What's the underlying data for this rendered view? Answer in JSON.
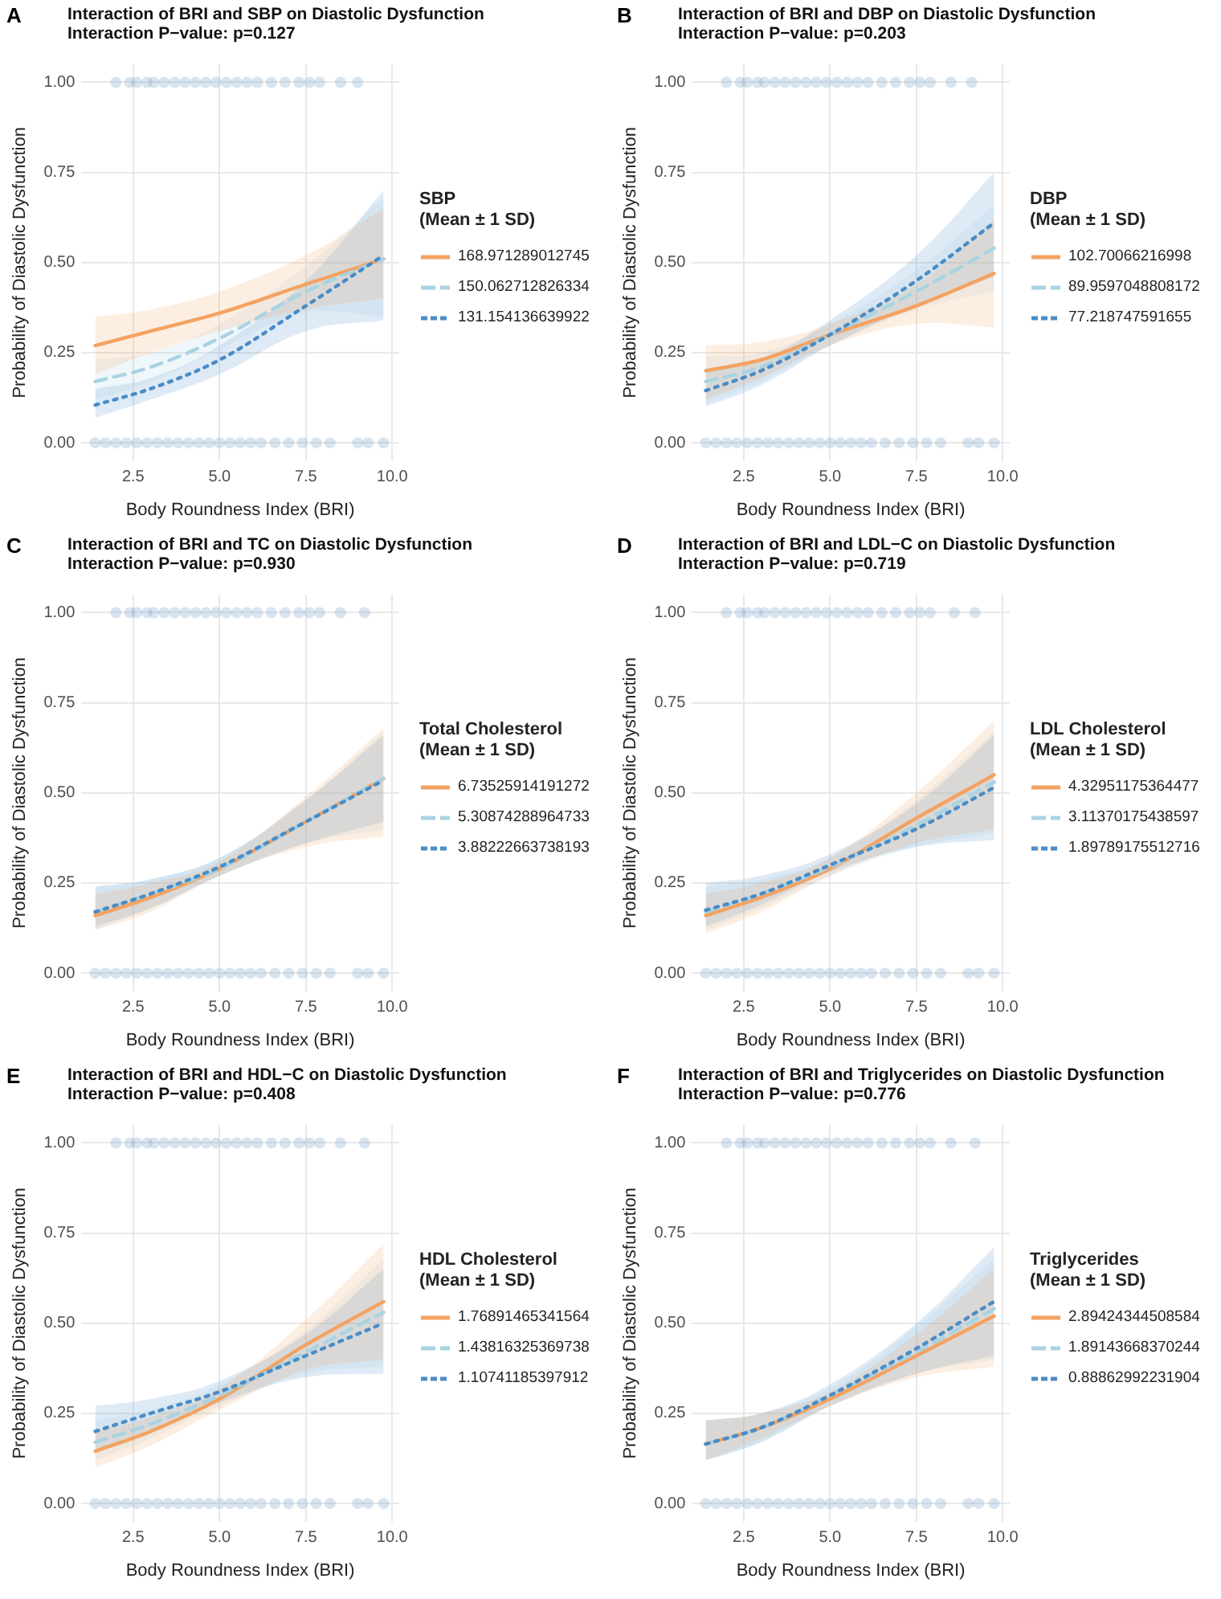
{
  "chart_data": [
    {
      "type": "line",
      "annotations": [
        "A"
      ],
      "title": "Interaction of BRI and SBP on Diastolic Dysfunction",
      "subtitle": "Interaction P−value: p=0.127",
      "xlabel": "Body Roundness Index (BRI)",
      "ylabel": "Probability of Diastolic Dysfunction",
      "legend_title": "SBP\n(Mean ± 1 SD)",
      "legend": "right",
      "grid": true,
      "xlim": [
        1.0,
        10.2
      ],
      "ylim": [
        -0.05,
        1.05
      ],
      "xticks": [
        {
          "value": 2.5,
          "label": "2.5"
        },
        {
          "value": 5,
          "label": "5.0"
        },
        {
          "value": 7.5,
          "label": "7.5"
        },
        {
          "value": 10,
          "label": "10.0"
        }
      ],
      "yticks": [
        {
          "value": 0,
          "label": "0.00"
        },
        {
          "value": 0.25,
          "label": "0.25"
        },
        {
          "value": 0.5,
          "label": "0.50"
        },
        {
          "value": 0.75,
          "label": "0.75"
        },
        {
          "value": 1,
          "label": "1.00"
        }
      ],
      "x": [
        1.4,
        3,
        5,
        7.5,
        9.75
      ],
      "series": [
        {
          "type": "scatter",
          "marker": "circle",
          "color": "#8fb3d1",
          "x": [
            2.0,
            2.4,
            2.6,
            2.9,
            3.1,
            3.4,
            3.7,
            4.0,
            4.3,
            4.6,
            4.9,
            5.2,
            5.5,
            5.8,
            6.1,
            6.5,
            6.9,
            7.3,
            7.6,
            7.9,
            8.5,
            9.0,
            1.4,
            1.7,
            2.0,
            2.3,
            2.6,
            2.9,
            3.2,
            3.5,
            3.8,
            4.1,
            4.4,
            4.7,
            5.0,
            5.3,
            5.6,
            5.9,
            6.2,
            6.6,
            7.0,
            7.4,
            7.8,
            8.2,
            9.0,
            9.3,
            9.75
          ],
          "values": [
            1,
            1,
            1,
            1,
            1,
            1,
            1,
            1,
            1,
            1,
            1,
            1,
            1,
            1,
            1,
            1,
            1,
            1,
            1,
            1,
            1,
            1,
            0,
            0,
            0,
            0,
            0,
            0,
            0,
            0,
            0,
            0,
            0,
            0,
            0,
            0,
            0,
            0,
            0,
            0,
            0,
            0,
            0,
            0,
            0,
            0,
            0
          ]
        },
        {
          "name": "168.971289012745",
          "color": "#f4a261",
          "line_style": "solid",
          "values": [
            0.27,
            0.31,
            0.36,
            0.44,
            0.51
          ],
          "lower": [
            0.19,
            0.25,
            0.31,
            0.37,
            0.4
          ],
          "upper": [
            0.35,
            0.37,
            0.42,
            0.52,
            0.65
          ]
        },
        {
          "name": "150.062712826334",
          "color": "#a8d3e3",
          "line_style": "dashed",
          "values": [
            0.17,
            0.21,
            0.29,
            0.42,
            0.51
          ],
          "lower": [
            0.12,
            0.17,
            0.26,
            0.36,
            0.35
          ],
          "upper": [
            0.23,
            0.25,
            0.33,
            0.49,
            0.68
          ]
        },
        {
          "name": "131.154136639922",
          "color": "#4a8cc6",
          "line_style": "dotted",
          "values": [
            0.105,
            0.15,
            0.23,
            0.38,
            0.52
          ],
          "lower": [
            0.07,
            0.12,
            0.19,
            0.31,
            0.34
          ],
          "upper": [
            0.15,
            0.18,
            0.27,
            0.45,
            0.7
          ]
        }
      ]
    },
    {
      "type": "line",
      "annotations": [
        "B"
      ],
      "title": "Interaction of BRI and DBP on Diastolic Dysfunction",
      "subtitle": "Interaction P−value: p=0.203",
      "xlabel": "Body Roundness Index (BRI)",
      "ylabel": "Probability of Diastolic Dysfunction",
      "legend_title": "DBP\n(Mean ± 1 SD)",
      "legend": "right",
      "grid": true,
      "xlim": [
        1.0,
        10.2
      ],
      "ylim": [
        -0.05,
        1.05
      ],
      "xticks": [
        {
          "value": 2.5,
          "label": "2.5"
        },
        {
          "value": 5,
          "label": "5.0"
        },
        {
          "value": 7.5,
          "label": "7.5"
        },
        {
          "value": 10,
          "label": "10.0"
        }
      ],
      "yticks": [
        {
          "value": 0,
          "label": "0.00"
        },
        {
          "value": 0.25,
          "label": "0.25"
        },
        {
          "value": 0.5,
          "label": "0.50"
        },
        {
          "value": 0.75,
          "label": "0.75"
        },
        {
          "value": 1,
          "label": "1.00"
        }
      ],
      "x": [
        1.4,
        3,
        5,
        7.5,
        9.75
      ],
      "series": [
        {
          "type": "scatter",
          "marker": "circle",
          "color": "#8fb3d1",
          "x": [
            2.0,
            2.4,
            2.6,
            2.9,
            3.1,
            3.4,
            3.7,
            4.0,
            4.3,
            4.6,
            4.9,
            5.2,
            5.5,
            5.8,
            6.1,
            6.5,
            6.9,
            7.3,
            7.6,
            7.9,
            8.5,
            9.1,
            1.4,
            1.7,
            2.0,
            2.3,
            2.6,
            2.9,
            3.2,
            3.5,
            3.8,
            4.1,
            4.4,
            4.7,
            5.0,
            5.3,
            5.6,
            5.9,
            6.2,
            6.6,
            7.0,
            7.4,
            7.8,
            8.2,
            9.0,
            9.3,
            9.75
          ],
          "values": [
            1,
            1,
            1,
            1,
            1,
            1,
            1,
            1,
            1,
            1,
            1,
            1,
            1,
            1,
            1,
            1,
            1,
            1,
            1,
            1,
            1,
            1,
            0,
            0,
            0,
            0,
            0,
            0,
            0,
            0,
            0,
            0,
            0,
            0,
            0,
            0,
            0,
            0,
            0,
            0,
            0,
            0,
            0,
            0,
            0,
            0,
            0
          ]
        },
        {
          "name": "102.70066216998",
          "color": "#f4a261",
          "line_style": "solid",
          "values": [
            0.2,
            0.23,
            0.3,
            0.38,
            0.47
          ],
          "lower": [
            0.12,
            0.18,
            0.27,
            0.33,
            0.32
          ],
          "upper": [
            0.27,
            0.28,
            0.33,
            0.44,
            0.62
          ]
        },
        {
          "name": "89.9597048808172",
          "color": "#a8d3e3",
          "line_style": "dashed",
          "values": [
            0.17,
            0.21,
            0.3,
            0.42,
            0.54
          ],
          "lower": [
            0.11,
            0.17,
            0.27,
            0.37,
            0.42
          ],
          "upper": [
            0.24,
            0.25,
            0.33,
            0.48,
            0.66
          ]
        },
        {
          "name": "77.218747591655",
          "color": "#4a8cc6",
          "line_style": "dotted",
          "values": [
            0.145,
            0.2,
            0.3,
            0.45,
            0.61
          ],
          "lower": [
            0.1,
            0.16,
            0.27,
            0.38,
            0.46
          ],
          "upper": [
            0.2,
            0.23,
            0.34,
            0.52,
            0.75
          ]
        }
      ]
    },
    {
      "type": "line",
      "annotations": [
        "C"
      ],
      "title": "Interaction of BRI and TC on Diastolic Dysfunction",
      "subtitle": "Interaction P−value: p=0.930",
      "xlabel": "Body Roundness Index (BRI)",
      "ylabel": "Probability of Diastolic Dysfunction",
      "legend_title": "Total Cholesterol\n(Mean ± 1 SD)",
      "legend": "right",
      "grid": true,
      "xlim": [
        1.0,
        10.2
      ],
      "ylim": [
        -0.05,
        1.05
      ],
      "xticks": [
        {
          "value": 2.5,
          "label": "2.5"
        },
        {
          "value": 5,
          "label": "5.0"
        },
        {
          "value": 7.5,
          "label": "7.5"
        },
        {
          "value": 10,
          "label": "10.0"
        }
      ],
      "yticks": [
        {
          "value": 0,
          "label": "0.00"
        },
        {
          "value": 0.25,
          "label": "0.25"
        },
        {
          "value": 0.5,
          "label": "0.50"
        },
        {
          "value": 0.75,
          "label": "0.75"
        },
        {
          "value": 1,
          "label": "1.00"
        }
      ],
      "x": [
        1.4,
        3,
        5,
        7.5,
        9.75
      ],
      "series": [
        {
          "type": "scatter",
          "marker": "circle",
          "color": "#8fb3d1",
          "x": [
            2.0,
            2.4,
            2.6,
            2.9,
            3.1,
            3.4,
            3.7,
            4.0,
            4.3,
            4.6,
            4.9,
            5.2,
            5.5,
            5.8,
            6.1,
            6.5,
            6.9,
            7.3,
            7.6,
            7.9,
            8.5,
            9.2,
            1.4,
            1.7,
            2.0,
            2.3,
            2.6,
            2.9,
            3.2,
            3.5,
            3.8,
            4.1,
            4.4,
            4.7,
            5.0,
            5.3,
            5.6,
            5.9,
            6.2,
            6.6,
            7.0,
            7.4,
            7.8,
            8.2,
            9.0,
            9.3,
            9.75
          ],
          "values": [
            1,
            1,
            1,
            1,
            1,
            1,
            1,
            1,
            1,
            1,
            1,
            1,
            1,
            1,
            1,
            1,
            1,
            1,
            1,
            1,
            1,
            1,
            0,
            0,
            0,
            0,
            0,
            0,
            0,
            0,
            0,
            0,
            0,
            0,
            0,
            0,
            0,
            0,
            0,
            0,
            0,
            0,
            0,
            0,
            0,
            0,
            0
          ]
        },
        {
          "name": "6.73525914191272",
          "color": "#f4a261",
          "line_style": "solid",
          "values": [
            0.16,
            0.21,
            0.29,
            0.42,
            0.54
          ],
          "lower": [
            0.12,
            0.17,
            0.27,
            0.35,
            0.38
          ],
          "upper": [
            0.22,
            0.25,
            0.31,
            0.49,
            0.68
          ]
        },
        {
          "name": "5.30874288964733",
          "color": "#a8d3e3",
          "line_style": "dashed",
          "values": [
            0.17,
            0.22,
            0.29,
            0.42,
            0.54
          ],
          "lower": [
            0.12,
            0.18,
            0.27,
            0.36,
            0.4
          ],
          "upper": [
            0.24,
            0.26,
            0.32,
            0.48,
            0.67
          ]
        },
        {
          "name": "3.88222663738193",
          "color": "#4a8cc6",
          "line_style": "dotted",
          "values": [
            0.17,
            0.22,
            0.295,
            0.42,
            0.535
          ],
          "lower": [
            0.13,
            0.18,
            0.27,
            0.36,
            0.42
          ],
          "upper": [
            0.24,
            0.26,
            0.32,
            0.48,
            0.66
          ]
        }
      ]
    },
    {
      "type": "line",
      "annotations": [
        "D"
      ],
      "title": "Interaction of BRI and LDL−C on Diastolic Dysfunction",
      "subtitle": "Interaction P−value: p=0.719",
      "xlabel": "Body Roundness Index (BRI)",
      "ylabel": "Probability of Diastolic Dysfunction",
      "legend_title": "LDL Cholesterol\n(Mean ± 1 SD)",
      "legend": "right",
      "grid": true,
      "xlim": [
        1.0,
        10.2
      ],
      "ylim": [
        -0.05,
        1.05
      ],
      "xticks": [
        {
          "value": 2.5,
          "label": "2.5"
        },
        {
          "value": 5,
          "label": "5.0"
        },
        {
          "value": 7.5,
          "label": "7.5"
        },
        {
          "value": 10,
          "label": "10.0"
        }
      ],
      "yticks": [
        {
          "value": 0,
          "label": "0.00"
        },
        {
          "value": 0.25,
          "label": "0.25"
        },
        {
          "value": 0.5,
          "label": "0.50"
        },
        {
          "value": 0.75,
          "label": "0.75"
        },
        {
          "value": 1,
          "label": "1.00"
        }
      ],
      "x": [
        1.4,
        3,
        5,
        7.5,
        9.75
      ],
      "series": [
        {
          "type": "scatter",
          "marker": "circle",
          "color": "#8fb3d1",
          "x": [
            2.0,
            2.4,
            2.6,
            2.9,
            3.1,
            3.4,
            3.7,
            4.0,
            4.3,
            4.6,
            4.9,
            5.2,
            5.5,
            5.8,
            6.1,
            6.5,
            6.9,
            7.3,
            7.6,
            7.9,
            8.6,
            9.2,
            1.4,
            1.7,
            2.0,
            2.3,
            2.6,
            2.9,
            3.2,
            3.5,
            3.8,
            4.1,
            4.4,
            4.7,
            5.0,
            5.3,
            5.6,
            5.9,
            6.2,
            6.6,
            7.0,
            7.4,
            7.8,
            8.2,
            9.0,
            9.3,
            9.75
          ],
          "values": [
            1,
            1,
            1,
            1,
            1,
            1,
            1,
            1,
            1,
            1,
            1,
            1,
            1,
            1,
            1,
            1,
            1,
            1,
            1,
            1,
            1,
            1,
            0,
            0,
            0,
            0,
            0,
            0,
            0,
            0,
            0,
            0,
            0,
            0,
            0,
            0,
            0,
            0,
            0,
            0,
            0,
            0,
            0,
            0,
            0,
            0,
            0
          ]
        },
        {
          "name": "4.32951175364477",
          "color": "#f4a261",
          "line_style": "solid",
          "values": [
            0.16,
            0.21,
            0.29,
            0.43,
            0.55
          ],
          "lower": [
            0.11,
            0.17,
            0.27,
            0.36,
            0.4
          ],
          "upper": [
            0.22,
            0.25,
            0.32,
            0.5,
            0.7
          ]
        },
        {
          "name": "3.11370175438597",
          "color": "#a8d3e3",
          "line_style": "dashed",
          "values": [
            0.17,
            0.22,
            0.295,
            0.41,
            0.53
          ],
          "lower": [
            0.12,
            0.18,
            0.27,
            0.35,
            0.39
          ],
          "upper": [
            0.24,
            0.26,
            0.32,
            0.48,
            0.67
          ]
        },
        {
          "name": "1.89789175512716",
          "color": "#4a8cc6",
          "line_style": "dotted",
          "values": [
            0.175,
            0.22,
            0.3,
            0.4,
            0.515
          ],
          "lower": [
            0.13,
            0.19,
            0.28,
            0.35,
            0.37
          ],
          "upper": [
            0.25,
            0.27,
            0.33,
            0.47,
            0.66
          ]
        }
      ]
    },
    {
      "type": "line",
      "annotations": [
        "E"
      ],
      "title": "Interaction of BRI and HDL−C on Diastolic Dysfunction",
      "subtitle": "Interaction P−value: p=0.408",
      "xlabel": "Body Roundness Index (BRI)",
      "ylabel": "Probability of Diastolic Dysfunction",
      "legend_title": "HDL Cholesterol\n(Mean ± 1 SD)",
      "legend": "right",
      "grid": true,
      "xlim": [
        1.0,
        10.2
      ],
      "ylim": [
        -0.05,
        1.05
      ],
      "xticks": [
        {
          "value": 2.5,
          "label": "2.5"
        },
        {
          "value": 5,
          "label": "5.0"
        },
        {
          "value": 7.5,
          "label": "7.5"
        },
        {
          "value": 10,
          "label": "10.0"
        }
      ],
      "yticks": [
        {
          "value": 0,
          "label": "0.00"
        },
        {
          "value": 0.25,
          "label": "0.25"
        },
        {
          "value": 0.5,
          "label": "0.50"
        },
        {
          "value": 0.75,
          "label": "0.75"
        },
        {
          "value": 1,
          "label": "1.00"
        }
      ],
      "x": [
        1.4,
        3,
        5,
        7.5,
        9.75
      ],
      "series": [
        {
          "type": "scatter",
          "marker": "circle",
          "color": "#8fb3d1",
          "x": [
            2.0,
            2.4,
            2.6,
            2.9,
            3.1,
            3.4,
            3.7,
            4.0,
            4.3,
            4.6,
            4.9,
            5.2,
            5.5,
            5.8,
            6.1,
            6.5,
            6.9,
            7.3,
            7.6,
            7.9,
            8.5,
            9.2,
            1.4,
            1.7,
            2.0,
            2.3,
            2.6,
            2.9,
            3.2,
            3.5,
            3.8,
            4.1,
            4.4,
            4.7,
            5.0,
            5.3,
            5.6,
            5.9,
            6.2,
            6.6,
            7.0,
            7.4,
            7.8,
            8.2,
            9.0,
            9.3,
            9.75
          ],
          "values": [
            1,
            1,
            1,
            1,
            1,
            1,
            1,
            1,
            1,
            1,
            1,
            1,
            1,
            1,
            1,
            1,
            1,
            1,
            1,
            1,
            1,
            1,
            0,
            0,
            0,
            0,
            0,
            0,
            0,
            0,
            0,
            0,
            0,
            0,
            0,
            0,
            0,
            0,
            0,
            0,
            0,
            0,
            0,
            0,
            0,
            0,
            0
          ]
        },
        {
          "name": "1.76891465341564",
          "color": "#f4a261",
          "line_style": "solid",
          "values": [
            0.145,
            0.2,
            0.29,
            0.44,
            0.56
          ],
          "lower": [
            0.1,
            0.16,
            0.26,
            0.37,
            0.4
          ],
          "upper": [
            0.2,
            0.24,
            0.32,
            0.51,
            0.72
          ]
        },
        {
          "name": "1.43816325369738",
          "color": "#a8d3e3",
          "line_style": "dashed",
          "values": [
            0.17,
            0.22,
            0.3,
            0.42,
            0.53
          ],
          "lower": [
            0.12,
            0.18,
            0.27,
            0.36,
            0.38
          ],
          "upper": [
            0.23,
            0.26,
            0.33,
            0.48,
            0.68
          ]
        },
        {
          "name": "1.10741185397912",
          "color": "#4a8cc6",
          "line_style": "dotted",
          "values": [
            0.2,
            0.25,
            0.31,
            0.41,
            0.5
          ],
          "lower": [
            0.14,
            0.2,
            0.28,
            0.35,
            0.36
          ],
          "upper": [
            0.27,
            0.29,
            0.34,
            0.47,
            0.65
          ]
        }
      ]
    },
    {
      "type": "line",
      "annotations": [
        "F"
      ],
      "title": "Interaction of BRI and Triglycerides on Diastolic Dysfunction",
      "subtitle": "Interaction P−value: p=0.776",
      "xlabel": "Body Roundness Index (BRI)",
      "ylabel": "Probability of Diastolic Dysfunction",
      "legend_title": "Triglycerides\n(Mean ± 1 SD)",
      "legend": "right",
      "grid": true,
      "xlim": [
        1.0,
        10.2
      ],
      "ylim": [
        -0.05,
        1.05
      ],
      "xticks": [
        {
          "value": 2.5,
          "label": "2.5"
        },
        {
          "value": 5,
          "label": "5.0"
        },
        {
          "value": 7.5,
          "label": "7.5"
        },
        {
          "value": 10,
          "label": "10.0"
        }
      ],
      "yticks": [
        {
          "value": 0,
          "label": "0.00"
        },
        {
          "value": 0.25,
          "label": "0.25"
        },
        {
          "value": 0.5,
          "label": "0.50"
        },
        {
          "value": 0.75,
          "label": "0.75"
        },
        {
          "value": 1,
          "label": "1.00"
        }
      ],
      "x": [
        1.4,
        3,
        5,
        7.5,
        9.75
      ],
      "series": [
        {
          "type": "scatter",
          "marker": "circle",
          "color": "#8fb3d1",
          "x": [
            2.0,
            2.4,
            2.6,
            2.9,
            3.1,
            3.4,
            3.7,
            4.0,
            4.3,
            4.6,
            4.9,
            5.2,
            5.5,
            5.8,
            6.1,
            6.5,
            6.9,
            7.3,
            7.6,
            7.9,
            8.5,
            9.2,
            1.4,
            1.7,
            2.0,
            2.3,
            2.6,
            2.9,
            3.2,
            3.5,
            3.8,
            4.1,
            4.4,
            4.7,
            5.0,
            5.3,
            5.6,
            5.9,
            6.2,
            6.6,
            7.0,
            7.4,
            7.8,
            8.2,
            9.0,
            9.3,
            9.75
          ],
          "values": [
            1,
            1,
            1,
            1,
            1,
            1,
            1,
            1,
            1,
            1,
            1,
            1,
            1,
            1,
            1,
            1,
            1,
            1,
            1,
            1,
            1,
            1,
            0,
            0,
            0,
            0,
            0,
            0,
            0,
            0,
            0,
            0,
            0,
            0,
            0,
            0,
            0,
            0,
            0,
            0,
            0,
            0,
            0,
            0,
            0,
            0,
            0
          ]
        },
        {
          "name": "2.89424344508584",
          "color": "#f4a261",
          "line_style": "solid",
          "values": [
            0.165,
            0.21,
            0.29,
            0.41,
            0.52
          ],
          "lower": [
            0.12,
            0.18,
            0.27,
            0.35,
            0.38
          ],
          "upper": [
            0.23,
            0.25,
            0.31,
            0.47,
            0.65
          ]
        },
        {
          "name": "1.89143668370244",
          "color": "#a8d3e3",
          "line_style": "dashed",
          "values": [
            0.165,
            0.21,
            0.3,
            0.42,
            0.54
          ],
          "lower": [
            0.12,
            0.17,
            0.27,
            0.36,
            0.4
          ],
          "upper": [
            0.23,
            0.25,
            0.32,
            0.49,
            0.68
          ]
        },
        {
          "name": "0.88862992231904",
          "color": "#4a8cc6",
          "line_style": "dotted",
          "values": [
            0.165,
            0.21,
            0.3,
            0.43,
            0.56
          ],
          "lower": [
            0.12,
            0.17,
            0.27,
            0.36,
            0.41
          ],
          "upper": [
            0.23,
            0.25,
            0.33,
            0.5,
            0.71
          ]
        }
      ]
    }
  ]
}
